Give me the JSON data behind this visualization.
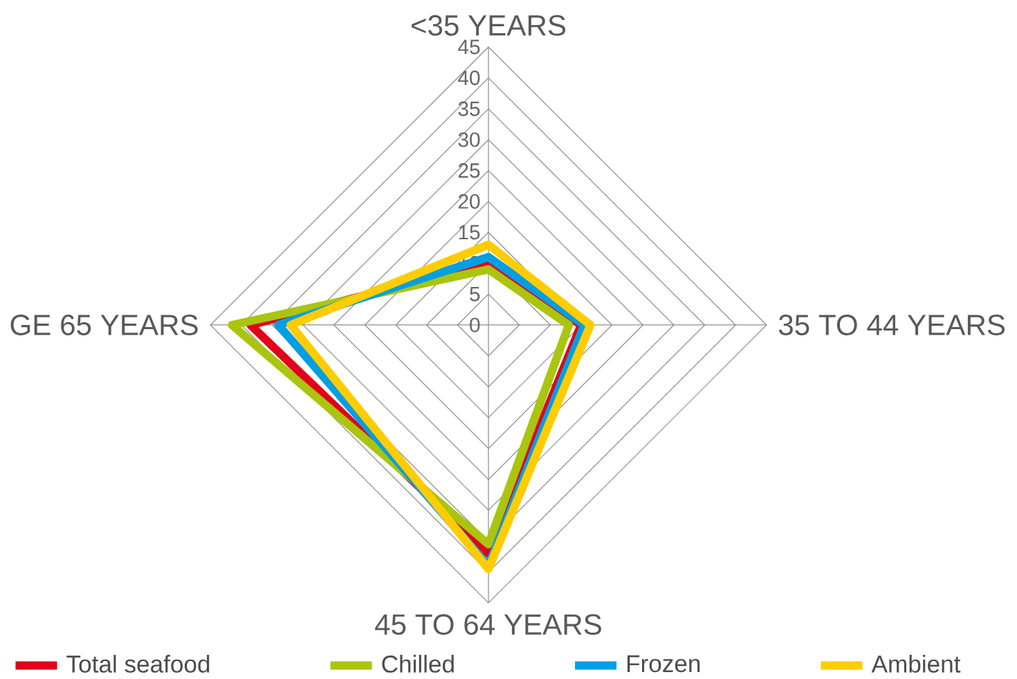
{
  "chart_data": {
    "type": "radar",
    "categories": [
      "<35 YEARS",
      "35 TO 44 YEARS",
      "45 TO 64 YEARS",
      "GE 65 YEARS"
    ],
    "series": [
      {
        "name": "Total seafood",
        "color": "#e2001a",
        "values": [
          10,
          15,
          37,
          38.5
        ]
      },
      {
        "name": "Chilled",
        "color": "#aac40f",
        "values": [
          9,
          13,
          35.5,
          41.5
        ]
      },
      {
        "name": "Frozen",
        "color": "#009fe3",
        "values": [
          11,
          15.5,
          39,
          34
        ]
      },
      {
        "name": "Ambient",
        "color": "#ffcc00",
        "values": [
          13,
          16.5,
          39.5,
          32
        ]
      }
    ],
    "ylim": [
      0,
      45
    ],
    "yticks": [
      0,
      5,
      10,
      15,
      20,
      25,
      30,
      35,
      40,
      45
    ],
    "grid": true,
    "legend": "bottom",
    "marker": "none",
    "line_style": "solid"
  }
}
